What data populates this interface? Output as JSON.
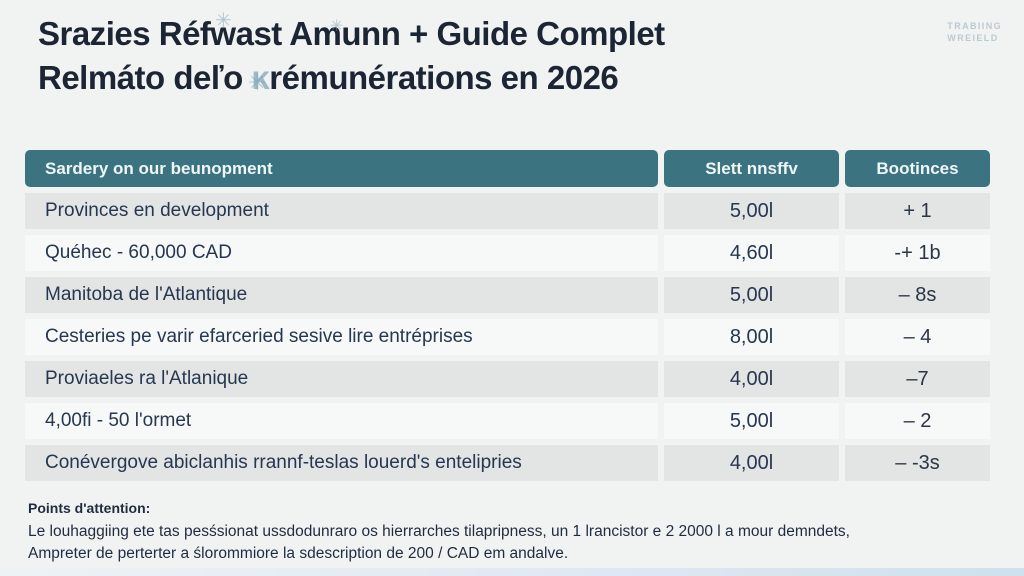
{
  "title": {
    "line1": "Srazies Réfwast Amunn + Guide Complet",
    "line2_pre": "Relmáto deľo ",
    "line2_k": "ĸ",
    "line2_post": "rémunérations en 2026"
  },
  "watermark": {
    "line1": "TRABIING",
    "line2": "WREIELD"
  },
  "artifacts": {
    "mark": "✳"
  },
  "table": {
    "headers": [
      "Sardery on our beunopment",
      "Slett nnsffv",
      "Bootinces"
    ],
    "rows": [
      {
        "label": "Provinces en development",
        "value": "5,00l",
        "delta": "+ 1"
      },
      {
        "label": "Quéhec - 60,000 CAD",
        "value": "4,60l",
        "delta": "-+ 1b"
      },
      {
        "label": "Manitoba de l'Atlantique",
        "value": "5,00l",
        "delta": "– 8s"
      },
      {
        "label": "Cesteries pe varir efarceried sesive lire entréprises",
        "value": "8,00l",
        "delta": "– 4"
      },
      {
        "label": "Proviaeles ra l'Atlanique",
        "value": "4,00l",
        "delta": "–7"
      },
      {
        "label": "4,00fi - 50 l'ormet",
        "value": "5,00l",
        "delta": "– 2"
      },
      {
        "label": "Conévergove abiclanhis rrannf-teslas louerd's entelipries",
        "value": "4,00l",
        "delta": "– -3s"
      }
    ]
  },
  "notes": {
    "heading": "Points d'attention:",
    "line1": "Le louhaggiing ete tas pesśsionat ussdodunraro os hierrarches tilapripness, un 1 lrancistor e 2 2000 l a mour demndets,",
    "line2": "Ampreter de perterter a ślorommiore la sdescription de 200 / CAD em andalve."
  },
  "colors": {
    "header_bg": "#3c7380",
    "row_odd": "#e3e4e4",
    "row_even": "#f7f8f8",
    "title_text": "#1c2534",
    "accent_bar": "#cfe0ee"
  }
}
